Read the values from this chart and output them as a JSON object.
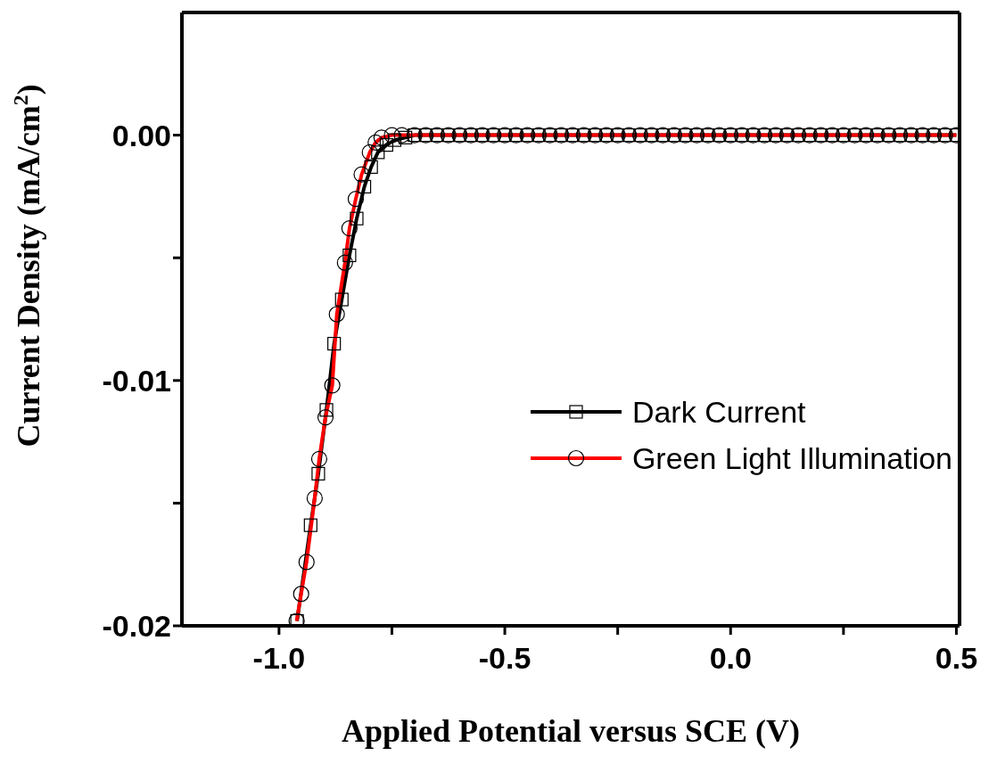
{
  "chart_data": {
    "type": "line",
    "xlabel": "Applied Potential versus SCE (V)",
    "ylabel": "Current Density (mA/cm$^{2}$)",
    "xlim": [
      -1.215,
      0.507
    ],
    "xticks": [
      {
        "value": -1.0,
        "label": "-1.0"
      },
      {
        "value": -0.75,
        "label": null
      },
      {
        "value": -0.5,
        "label": "-0.5"
      },
      {
        "value": -0.25,
        "label": null
      },
      {
        "value": 0.0,
        "label": "0.0"
      },
      {
        "value": 0.25,
        "label": null
      },
      {
        "value": 0.5,
        "label": "0.5"
      }
    ],
    "ylim": [
      -0.02,
      0.005
    ],
    "yticks": [
      {
        "value": -0.02,
        "label": "-0.02"
      },
      {
        "value": -0.015,
        "label": null
      },
      {
        "value": -0.01,
        "label": "-0.01"
      },
      {
        "value": -0.005,
        "label": null
      },
      {
        "value": 0.0,
        "label": "0.00"
      }
    ],
    "legend": "right",
    "series": [
      {
        "name": "Dark Current",
        "color": "#000000",
        "marker": "square",
        "x": [
          -0.96,
          -0.93,
          -0.913,
          -0.895,
          -0.878,
          -0.861,
          -0.844,
          -0.828,
          -0.811,
          -0.796,
          -0.781,
          -0.762,
          -0.744,
          -0.72,
          -0.7,
          -0.675,
          -0.65,
          -0.625,
          -0.6,
          -0.575,
          -0.55,
          -0.525,
          -0.5,
          -0.475,
          -0.45,
          -0.425,
          -0.4,
          -0.375,
          -0.35,
          -0.325,
          -0.3,
          -0.275,
          -0.25,
          -0.225,
          -0.2,
          -0.175,
          -0.15,
          -0.125,
          -0.1,
          -0.075,
          -0.05,
          -0.025,
          0.0,
          0.025,
          0.05,
          0.075,
          0.1,
          0.125,
          0.15,
          0.175,
          0.2,
          0.225,
          0.25,
          0.275,
          0.3,
          0.325,
          0.35,
          0.375,
          0.4,
          0.425,
          0.45,
          0.475,
          0.5
        ],
        "values": [
          -0.0198,
          -0.0159,
          -0.0138,
          -0.0112,
          -0.0085,
          -0.0067,
          -0.0049,
          -0.0034,
          -0.0021,
          -0.0013,
          -0.0007,
          -0.0004,
          -0.0002,
          -0.0001,
          0,
          0,
          0,
          0,
          0,
          0,
          0,
          0,
          0,
          0,
          0,
          0,
          0,
          0,
          0,
          0,
          0,
          0,
          0,
          0,
          0,
          0,
          0,
          0,
          0,
          0,
          0,
          0,
          0,
          0,
          0,
          0,
          0,
          0,
          0,
          0,
          0,
          0,
          0,
          0,
          0,
          0,
          0,
          0,
          0,
          0,
          0,
          0,
          0
        ]
      },
      {
        "name": "Green Light Illumination",
        "color": "#ff0000",
        "marker": "circle",
        "x": [
          -0.961,
          -0.951,
          -0.939,
          -0.921,
          -0.911,
          -0.897,
          -0.882,
          -0.872,
          -0.854,
          -0.844,
          -0.83,
          -0.817,
          -0.799,
          -0.786,
          -0.773,
          -0.75,
          -0.728,
          -0.7,
          -0.675,
          -0.65,
          -0.625,
          -0.6,
          -0.575,
          -0.55,
          -0.525,
          -0.5,
          -0.475,
          -0.45,
          -0.425,
          -0.4,
          -0.375,
          -0.35,
          -0.325,
          -0.3,
          -0.275,
          -0.25,
          -0.225,
          -0.2,
          -0.175,
          -0.15,
          -0.125,
          -0.1,
          -0.075,
          -0.05,
          -0.025,
          0.0,
          0.025,
          0.05,
          0.075,
          0.1,
          0.125,
          0.15,
          0.175,
          0.2,
          0.225,
          0.25,
          0.275,
          0.3,
          0.325,
          0.35,
          0.375,
          0.4,
          0.425,
          0.45,
          0.475,
          0.5
        ],
        "values": [
          -0.0198,
          -0.0187,
          -0.0174,
          -0.0148,
          -0.0132,
          -0.0115,
          -0.0102,
          -0.0073,
          -0.0052,
          -0.0038,
          -0.0026,
          -0.0016,
          -0.0007,
          -0.0003,
          -0.0001,
          0,
          0,
          0,
          0,
          0,
          0,
          0,
          0,
          0,
          0,
          0,
          0,
          0,
          0,
          0,
          0,
          0,
          0,
          0,
          0,
          0,
          0,
          0,
          0,
          0,
          0,
          0,
          0,
          0,
          0,
          0,
          0,
          0,
          0,
          0,
          0,
          0,
          0,
          0,
          0,
          0,
          0,
          0,
          0,
          0,
          0,
          0,
          0,
          0,
          0,
          0
        ]
      }
    ]
  }
}
